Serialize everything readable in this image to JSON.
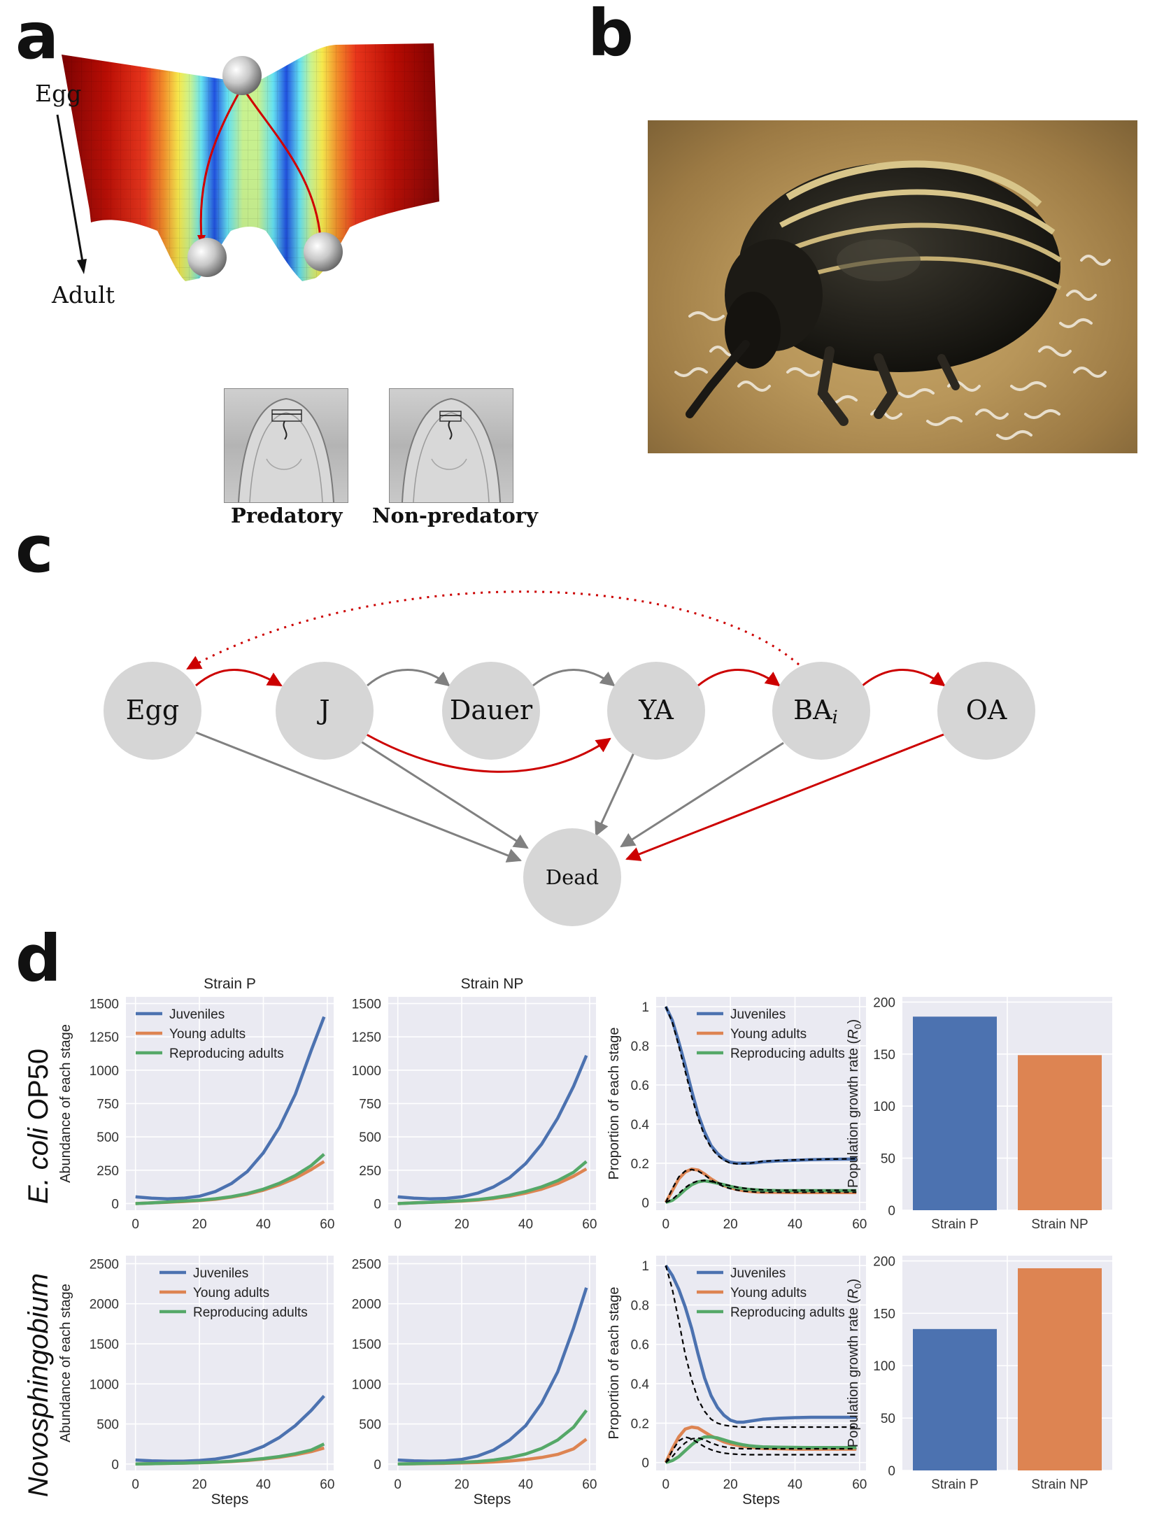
{
  "panel_a": {
    "letter": "a",
    "top_label": "Egg",
    "bottom_label": "Adult",
    "micro_labels": [
      "Predatory",
      "Non-predatory"
    ],
    "colors": {
      "deep": "#7a0000",
      "red": "#d81e05",
      "orange": "#f28c28",
      "yellow": "#f6e94b",
      "green": "#b6f0a0",
      "cyan": "#63e2f2",
      "blue": "#1d4fe0",
      "path": "#d00000"
    }
  },
  "panel_b": {
    "letter": "b"
  },
  "panel_c": {
    "letter": "c",
    "nodes": [
      "Egg",
      "J",
      "Dauer",
      "YA",
      "BA",
      "OA",
      "Dead"
    ],
    "ba_subscript": "i",
    "colors": {
      "node": "#d6d6d6",
      "red": "#cc0000",
      "gray": "#808080"
    }
  },
  "panel_d": {
    "letter": "d",
    "row_labels": [
      "E. coli OP50",
      "Novosphingobium"
    ],
    "row_label_parts": [
      {
        "italic": "E. coli",
        "rest": " OP50"
      },
      {
        "italic": "Novosphingobium",
        "rest": ""
      }
    ],
    "col_titles": [
      "Strain P",
      "Strain NP"
    ],
    "ylabels": {
      "abundance": "Abundance of each stage",
      "proportion": "Proportion of each stage",
      "growth_prefix": "Population growth rate (",
      "growth_symbol": "R",
      "growth_sub": "0",
      "growth_suffix": ")"
    },
    "xlabel": "Steps",
    "legend": [
      "Juveniles",
      "Young adults",
      "Reproducing adults"
    ],
    "colors": {
      "juv": "#4c72b0",
      "young": "#dd8452",
      "repro": "#55a868",
      "bg": "#eaeaf2",
      "grid": "#ffffff",
      "bar_p": "#4c72b0",
      "bar_np": "#dd8452"
    }
  },
  "chart_data": [
    {
      "type": "line",
      "id": "ecoli-strain-p",
      "title": "Strain P",
      "xlabel": "",
      "ylabel": "Abundance of each stage",
      "xlim": [
        -3,
        62
      ],
      "ylim": [
        -50,
        1550
      ],
      "xticks": [
        0,
        20,
        40,
        60
      ],
      "yticks": [
        0,
        250,
        500,
        750,
        1000,
        1250,
        1500
      ],
      "x": [
        0,
        5,
        10,
        15,
        20,
        25,
        30,
        35,
        40,
        45,
        50,
        55,
        59
      ],
      "series": [
        {
          "name": "Juveniles",
          "values": [
            50,
            40,
            35,
            40,
            55,
            90,
            150,
            240,
            380,
            570,
            820,
            1150,
            1400
          ]
        },
        {
          "name": "Young adults",
          "values": [
            0,
            5,
            10,
            15,
            22,
            32,
            48,
            70,
            100,
            140,
            190,
            255,
            315
          ]
        },
        {
          "name": "Reproducing adults",
          "values": [
            0,
            5,
            12,
            18,
            25,
            36,
            52,
            75,
            108,
            152,
            210,
            285,
            370
          ]
        }
      ],
      "legend": "top-left",
      "grid": true
    },
    {
      "type": "line",
      "id": "ecoli-strain-np",
      "title": "Strain NP",
      "xlabel": "",
      "ylabel": "",
      "xlim": [
        -3,
        62
      ],
      "ylim": [
        -50,
        1550
      ],
      "xticks": [
        0,
        20,
        40,
        60
      ],
      "yticks": [
        0,
        250,
        500,
        750,
        1000,
        1250,
        1500
      ],
      "x": [
        0,
        5,
        10,
        15,
        20,
        25,
        30,
        35,
        40,
        45,
        50,
        55,
        59
      ],
      "series": [
        {
          "name": "Juveniles",
          "values": [
            50,
            40,
            35,
            38,
            50,
            78,
            125,
            195,
            300,
            445,
            640,
            880,
            1110
          ]
        },
        {
          "name": "Young adults",
          "values": [
            0,
            5,
            9,
            13,
            18,
            26,
            38,
            55,
            78,
            108,
            150,
            205,
            260
          ]
        },
        {
          "name": "Reproducing adults",
          "values": [
            0,
            5,
            10,
            15,
            21,
            30,
            44,
            63,
            90,
            125,
            172,
            235,
            315
          ]
        }
      ],
      "grid": true
    },
    {
      "type": "line",
      "id": "ecoli-proportion",
      "title": "",
      "xlabel": "",
      "ylabel": "Proportion of each stage",
      "xlim": [
        -3,
        62
      ],
      "ylim": [
        -0.04,
        1.05
      ],
      "xticks": [
        0,
        20,
        40,
        60
      ],
      "yticks": [
        0,
        0.2,
        0.4,
        0.6,
        0.8,
        1.0
      ],
      "x": [
        0,
        2,
        4,
        6,
        8,
        10,
        12,
        14,
        16,
        18,
        20,
        22,
        24,
        26,
        28,
        30,
        35,
        40,
        45,
        50,
        55,
        59
      ],
      "series": [
        {
          "name": "Juveniles",
          "values": [
            1.0,
            0.93,
            0.82,
            0.7,
            0.57,
            0.45,
            0.36,
            0.29,
            0.25,
            0.22,
            0.205,
            0.2,
            0.2,
            0.2,
            0.203,
            0.207,
            0.212,
            0.215,
            0.218,
            0.22,
            0.221,
            0.222
          ]
        },
        {
          "name": "Young adults",
          "values": [
            0.0,
            0.06,
            0.12,
            0.155,
            0.17,
            0.165,
            0.145,
            0.12,
            0.1,
            0.085,
            0.075,
            0.066,
            0.06,
            0.056,
            0.053,
            0.052,
            0.051,
            0.05,
            0.05,
            0.05,
            0.05,
            0.05
          ]
        },
        {
          "name": "Reproducing adults",
          "values": [
            0.0,
            0.01,
            0.035,
            0.065,
            0.09,
            0.105,
            0.11,
            0.105,
            0.098,
            0.09,
            0.082,
            0.075,
            0.07,
            0.066,
            0.064,
            0.062,
            0.06,
            0.06,
            0.06,
            0.06,
            0.06,
            0.06
          ]
        }
      ],
      "legend": "top-right",
      "grid": true
    },
    {
      "type": "bar",
      "id": "ecoli-growth",
      "title": "",
      "xlabel": "",
      "ylabel": "Population growth rate (R0)",
      "categories": [
        "Strain P",
        "Strain NP"
      ],
      "values": [
        186,
        149
      ],
      "ylim": [
        0,
        205
      ],
      "yticks": [
        0,
        50,
        100,
        150,
        200
      ],
      "grid": true
    },
    {
      "type": "line",
      "id": "novo-strain-p",
      "title": "",
      "xlabel": "Steps",
      "ylabel": "Abundance of each stage",
      "xlim": [
        -3,
        62
      ],
      "ylim": [
        -80,
        2600
      ],
      "xticks": [
        0,
        20,
        40,
        60
      ],
      "yticks": [
        0,
        500,
        1000,
        1500,
        2000,
        2500
      ],
      "x": [
        0,
        5,
        10,
        15,
        20,
        25,
        30,
        35,
        40,
        45,
        50,
        55,
        59
      ],
      "series": [
        {
          "name": "Juveniles",
          "values": [
            50,
            40,
            35,
            36,
            44,
            62,
            95,
            145,
            220,
            330,
            480,
            670,
            850
          ]
        },
        {
          "name": "Young adults",
          "values": [
            0,
            4,
            8,
            12,
            16,
            22,
            31,
            44,
            62,
            85,
            115,
            155,
            200
          ]
        },
        {
          "name": "Reproducing adults",
          "values": [
            0,
            4,
            8,
            12,
            17,
            24,
            34,
            48,
            68,
            94,
            128,
            175,
            250
          ]
        }
      ],
      "legend": "top-center",
      "grid": true
    },
    {
      "type": "line",
      "id": "novo-strain-np",
      "title": "",
      "xlabel": "Steps",
      "ylabel": "",
      "xlim": [
        -3,
        62
      ],
      "ylim": [
        -80,
        2600
      ],
      "xticks": [
        0,
        20,
        40,
        60
      ],
      "yticks": [
        0,
        500,
        1000,
        1500,
        2000,
        2500
      ],
      "x": [
        0,
        5,
        10,
        15,
        20,
        25,
        30,
        35,
        40,
        45,
        50,
        55,
        59
      ],
      "series": [
        {
          "name": "Juveniles",
          "values": [
            50,
            40,
            35,
            40,
            58,
            100,
            175,
            300,
            480,
            760,
            1150,
            1700,
            2200
          ]
        },
        {
          "name": "Young adults",
          "values": [
            0,
            3,
            6,
            9,
            13,
            18,
            26,
            38,
            56,
            82,
            120,
            190,
            310
          ]
        },
        {
          "name": "Reproducing adults",
          "values": [
            0,
            4,
            9,
            14,
            21,
            32,
            50,
            80,
            125,
            195,
            300,
            460,
            670
          ]
        }
      ],
      "grid": true
    },
    {
      "type": "line",
      "id": "novo-proportion",
      "title": "",
      "xlabel": "Steps",
      "ylabel": "Proportion of each stage",
      "xlim": [
        -3,
        62
      ],
      "ylim": [
        -0.04,
        1.05
      ],
      "xticks": [
        0,
        20,
        40,
        60
      ],
      "yticks": [
        0,
        0.2,
        0.4,
        0.6,
        0.8,
        1.0
      ],
      "x": [
        0,
        2,
        4,
        6,
        8,
        10,
        12,
        14,
        16,
        18,
        20,
        22,
        24,
        26,
        28,
        30,
        35,
        40,
        45,
        50,
        55,
        59
      ],
      "series": [
        {
          "name": "Juveniles",
          "values": [
            1.0,
            0.95,
            0.88,
            0.79,
            0.68,
            0.55,
            0.43,
            0.34,
            0.28,
            0.24,
            0.215,
            0.205,
            0.205,
            0.21,
            0.215,
            0.22,
            0.225,
            0.228,
            0.23,
            0.23,
            0.23,
            0.23
          ]
        },
        {
          "name": "Young adults",
          "values": [
            0.0,
            0.07,
            0.13,
            0.17,
            0.18,
            0.175,
            0.155,
            0.135,
            0.12,
            0.105,
            0.095,
            0.088,
            0.082,
            0.078,
            0.075,
            0.072,
            0.07,
            0.068,
            0.068,
            0.068,
            0.068,
            0.068
          ]
        },
        {
          "name": "Reproducing adults",
          "values": [
            0.0,
            0.01,
            0.03,
            0.06,
            0.09,
            0.115,
            0.13,
            0.13,
            0.125,
            0.115,
            0.105,
            0.097,
            0.09,
            0.085,
            0.082,
            0.08,
            0.078,
            0.077,
            0.076,
            0.076,
            0.076,
            0.076
          ]
        }
      ],
      "legend": "top-right",
      "grid": true
    },
    {
      "type": "bar",
      "id": "novo-growth",
      "title": "",
      "xlabel": "",
      "ylabel": "Population growth rate (R0)",
      "categories": [
        "Strain P",
        "Strain NP"
      ],
      "values": [
        135,
        193
      ],
      "ylim": [
        0,
        205
      ],
      "yticks": [
        0,
        50,
        100,
        150,
        200
      ],
      "grid": true
    }
  ]
}
